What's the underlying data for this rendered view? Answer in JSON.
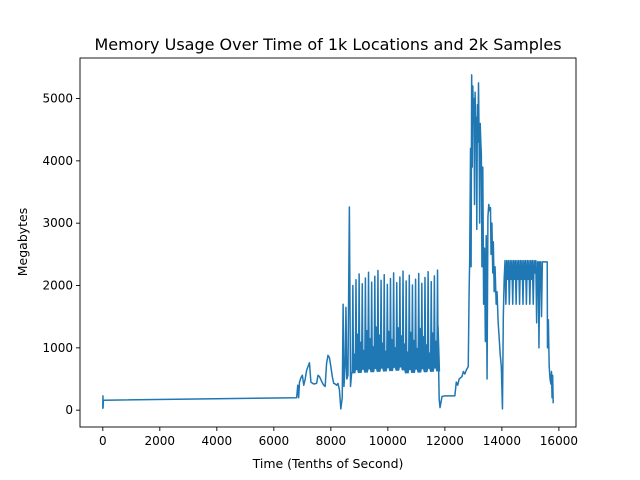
{
  "chart_data": {
    "type": "line",
    "title": "Memory Usage Over Time of 1k Locations and 2k Samples",
    "xlabel": "Time (Tenths of Second)",
    "ylabel": "Megabytes",
    "xlim": [
      -800,
      16600
    ],
    "ylim": [
      -270,
      5650
    ],
    "xticks": [
      0,
      2000,
      4000,
      6000,
      8000,
      10000,
      12000,
      14000,
      16000
    ],
    "yticks": [
      0,
      1000,
      2000,
      3000,
      4000,
      5000
    ],
    "grid": false,
    "series": [
      {
        "color": "#1f77b4",
        "points": [
          [
            0,
            20
          ],
          [
            5,
            230
          ],
          [
            10,
            40
          ],
          [
            20,
            160
          ],
          [
            40,
            160
          ],
          [
            6800,
            200
          ],
          [
            6840,
            400
          ],
          [
            6870,
            200
          ],
          [
            6900,
            450
          ],
          [
            6950,
            520
          ],
          [
            7000,
            560
          ],
          [
            7050,
            400
          ],
          [
            7100,
            500
          ],
          [
            7150,
            640
          ],
          [
            7200,
            700
          ],
          [
            7250,
            760
          ],
          [
            7300,
            450
          ],
          [
            7400,
            420
          ],
          [
            7500,
            430
          ],
          [
            7550,
            560
          ],
          [
            7600,
            540
          ],
          [
            7700,
            440
          ],
          [
            7750,
            400
          ],
          [
            7800,
            380
          ],
          [
            7850,
            750
          ],
          [
            7900,
            880
          ],
          [
            7950,
            840
          ],
          [
            8000,
            700
          ],
          [
            8050,
            540
          ],
          [
            8100,
            430
          ],
          [
            8150,
            420
          ],
          [
            8200,
            400
          ],
          [
            8250,
            430
          ],
          [
            8300,
            330
          ],
          [
            8350,
            20
          ],
          [
            8400,
            200
          ],
          [
            8430,
            1700
          ],
          [
            8460,
            380
          ],
          [
            8500,
            700
          ],
          [
            8530,
            1650
          ],
          [
            8560,
            500
          ],
          [
            8600,
            560
          ],
          [
            8650,
            3260
          ],
          [
            8690,
            380
          ],
          [
            8730,
            600
          ]
        ],
        "osc": {
          "start": 8750,
          "end": 11750,
          "step": 110,
          "high": [
            2000,
            2250
          ],
          "mid_low": [
            600,
            700
          ],
          "mid_high": [
            900,
            1350
          ]
        },
        "tail_points": [
          [
            11760,
            1350
          ],
          [
            11780,
            700
          ],
          [
            11800,
            180
          ],
          [
            11830,
            40
          ],
          [
            11900,
            220
          ],
          [
            12000,
            230
          ],
          [
            12300,
            230
          ],
          [
            12350,
            230
          ],
          [
            12400,
            450
          ],
          [
            12450,
            400
          ],
          [
            12500,
            500
          ],
          [
            12550,
            520
          ],
          [
            12600,
            540
          ],
          [
            12650,
            620
          ],
          [
            12700,
            580
          ],
          [
            12750,
            640
          ],
          [
            12820,
            700
          ],
          [
            12850,
            1900
          ],
          [
            12870,
            2400
          ],
          [
            12900,
            4200
          ],
          [
            12920,
            2300
          ],
          [
            12940,
            5380
          ],
          [
            12960,
            3900
          ],
          [
            12980,
            5200
          ],
          [
            13000,
            4600
          ],
          [
            13020,
            5000
          ],
          [
            13040,
            3300
          ],
          [
            13060,
            5100
          ],
          [
            13080,
            4400
          ],
          [
            13100,
            4700
          ],
          [
            13120,
            2900
          ],
          [
            13140,
            4900
          ],
          [
            13160,
            4300
          ],
          [
            13180,
            5250
          ],
          [
            13200,
            4400
          ],
          [
            13220,
            3000
          ],
          [
            13240,
            4600
          ],
          [
            13260,
            4300
          ],
          [
            13280,
            4100
          ],
          [
            13300,
            2300
          ],
          [
            13330,
            3900
          ],
          [
            13360,
            1700
          ],
          [
            13390,
            2600
          ],
          [
            13420,
            1100
          ],
          [
            13450,
            2800
          ],
          [
            13480,
            500
          ],
          [
            13510,
            3100
          ],
          [
            13540,
            3300
          ],
          [
            13570,
            3200
          ],
          [
            13600,
            3250
          ],
          [
            13620,
            2500
          ],
          [
            13650,
            3000
          ],
          [
            13680,
            2200
          ],
          [
            13700,
            2700
          ],
          [
            13730,
            1900
          ],
          [
            13760,
            2300
          ],
          [
            13800,
            1700
          ],
          [
            13830,
            1900
          ],
          [
            13870,
            1400
          ],
          [
            13900,
            1200
          ],
          [
            13940,
            900
          ],
          [
            13980,
            700
          ],
          [
            14020,
            20
          ],
          [
            14050,
            1500
          ],
          [
            14080,
            2100
          ],
          [
            14110,
            2400
          ],
          [
            14140,
            1700
          ],
          [
            14170,
            2400
          ],
          [
            14200,
            2100
          ],
          [
            14230,
            2400
          ],
          [
            14260,
            1700
          ],
          [
            14290,
            2400
          ],
          [
            14320,
            2100
          ],
          [
            14350,
            2400
          ],
          [
            14380,
            1700
          ],
          [
            14410,
            2400
          ],
          [
            14440,
            2100
          ],
          [
            14470,
            2400
          ],
          [
            14500,
            1700
          ],
          [
            14530,
            2400
          ],
          [
            14560,
            2100
          ],
          [
            14590,
            2400
          ],
          [
            14620,
            1700
          ],
          [
            14650,
            2400
          ],
          [
            14680,
            2100
          ],
          [
            14710,
            2400
          ],
          [
            14740,
            1700
          ],
          [
            14770,
            2400
          ],
          [
            14800,
            2100
          ],
          [
            14830,
            2400
          ],
          [
            14860,
            1700
          ],
          [
            14890,
            2400
          ],
          [
            14920,
            2100
          ],
          [
            14950,
            2400
          ],
          [
            14980,
            1700
          ],
          [
            15010,
            2400
          ],
          [
            15040,
            2100
          ],
          [
            15070,
            2400
          ],
          [
            15100,
            1700
          ],
          [
            15130,
            2400
          ],
          [
            15160,
            2200
          ],
          [
            15190,
            2400
          ],
          [
            15220,
            1400
          ],
          [
            15250,
            2380
          ],
          [
            15280,
            2380
          ],
          [
            15300,
            1000
          ],
          [
            15330,
            2380
          ],
          [
            15360,
            2380
          ],
          [
            15390,
            1500
          ],
          [
            15420,
            2380
          ],
          [
            15450,
            2380
          ],
          [
            15480,
            2380
          ],
          [
            15520,
            2380
          ],
          [
            15560,
            2380
          ],
          [
            15590,
            2380
          ],
          [
            15600,
            1000
          ],
          [
            15630,
            1450
          ],
          [
            15660,
            700
          ],
          [
            15690,
            500
          ],
          [
            15720,
            420
          ],
          [
            15740,
            620
          ],
          [
            15760,
            200
          ],
          [
            15780,
            560
          ],
          [
            15800,
            110
          ]
        ]
      }
    ]
  }
}
